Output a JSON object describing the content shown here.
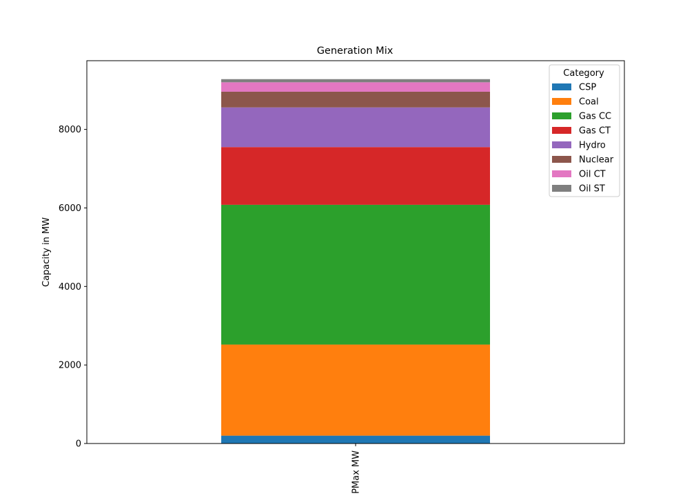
{
  "chart_data": {
    "type": "bar",
    "stacked": true,
    "title": "Generation Mix",
    "xlabel": "",
    "ylabel": "Capacity in MW",
    "categories": [
      "PMax MW"
    ],
    "ylim": [
      0,
      9750
    ],
    "yticks": [
      0,
      2000,
      4000,
      6000,
      8000
    ],
    "ytick_labels": [
      "0",
      "2000",
      "4000",
      "6000",
      "8000"
    ],
    "grid": false,
    "legend": {
      "title": "Category",
      "position": "top-right"
    },
    "series": [
      {
        "name": "CSP",
        "color": "#1f77b4",
        "values": [
          200
        ]
      },
      {
        "name": "Coal",
        "color": "#ff7f0e",
        "values": [
          2320
        ]
      },
      {
        "name": "Gas CC",
        "color": "#2ca02c",
        "values": [
          3560
        ]
      },
      {
        "name": "Gas CT",
        "color": "#d62728",
        "values": [
          1470
        ]
      },
      {
        "name": "Hydro",
        "color": "#9467bd",
        "values": [
          1010
        ]
      },
      {
        "name": "Nuclear",
        "color": "#8c564b",
        "values": [
          400
        ]
      },
      {
        "name": "Oil CT",
        "color": "#e377c2",
        "values": [
          240
        ]
      },
      {
        "name": "Oil ST",
        "color": "#7f7f7f",
        "values": [
          80
        ]
      }
    ]
  }
}
